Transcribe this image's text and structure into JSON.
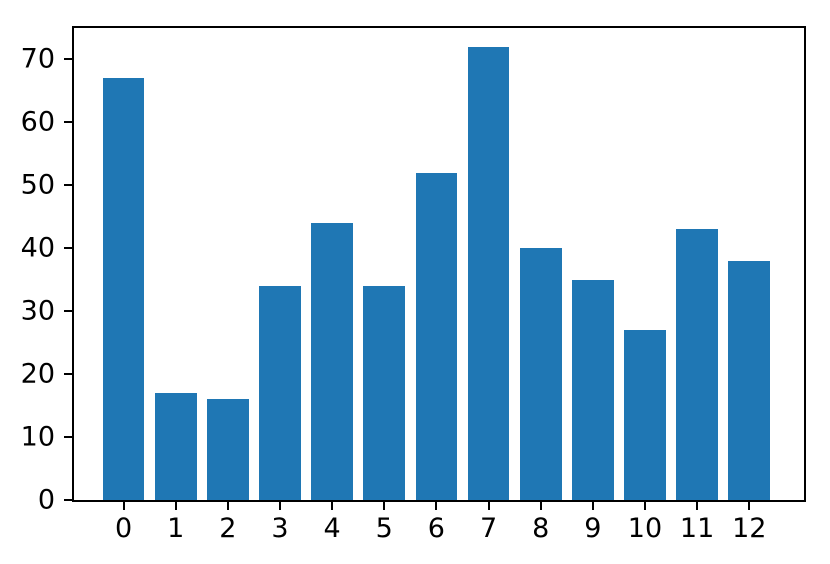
{
  "chart_data": {
    "type": "bar",
    "title": "",
    "xlabel": "",
    "ylabel": "",
    "categories": [
      "0",
      "1",
      "2",
      "3",
      "4",
      "5",
      "6",
      "7",
      "8",
      "9",
      "10",
      "11",
      "12"
    ],
    "values": [
      67,
      17,
      16,
      34,
      44,
      34,
      52,
      72,
      40,
      35,
      27,
      43,
      38
    ],
    "yticks": [
      0,
      10,
      20,
      30,
      40,
      50,
      60,
      70
    ],
    "ylim": [
      0,
      75
    ],
    "xlim": [
      -0.95,
      13.05
    ],
    "bar_width_units": 0.8,
    "bar_color": "#1f77b4",
    "spine_color": "#000000",
    "grid": false,
    "legend": null
  }
}
